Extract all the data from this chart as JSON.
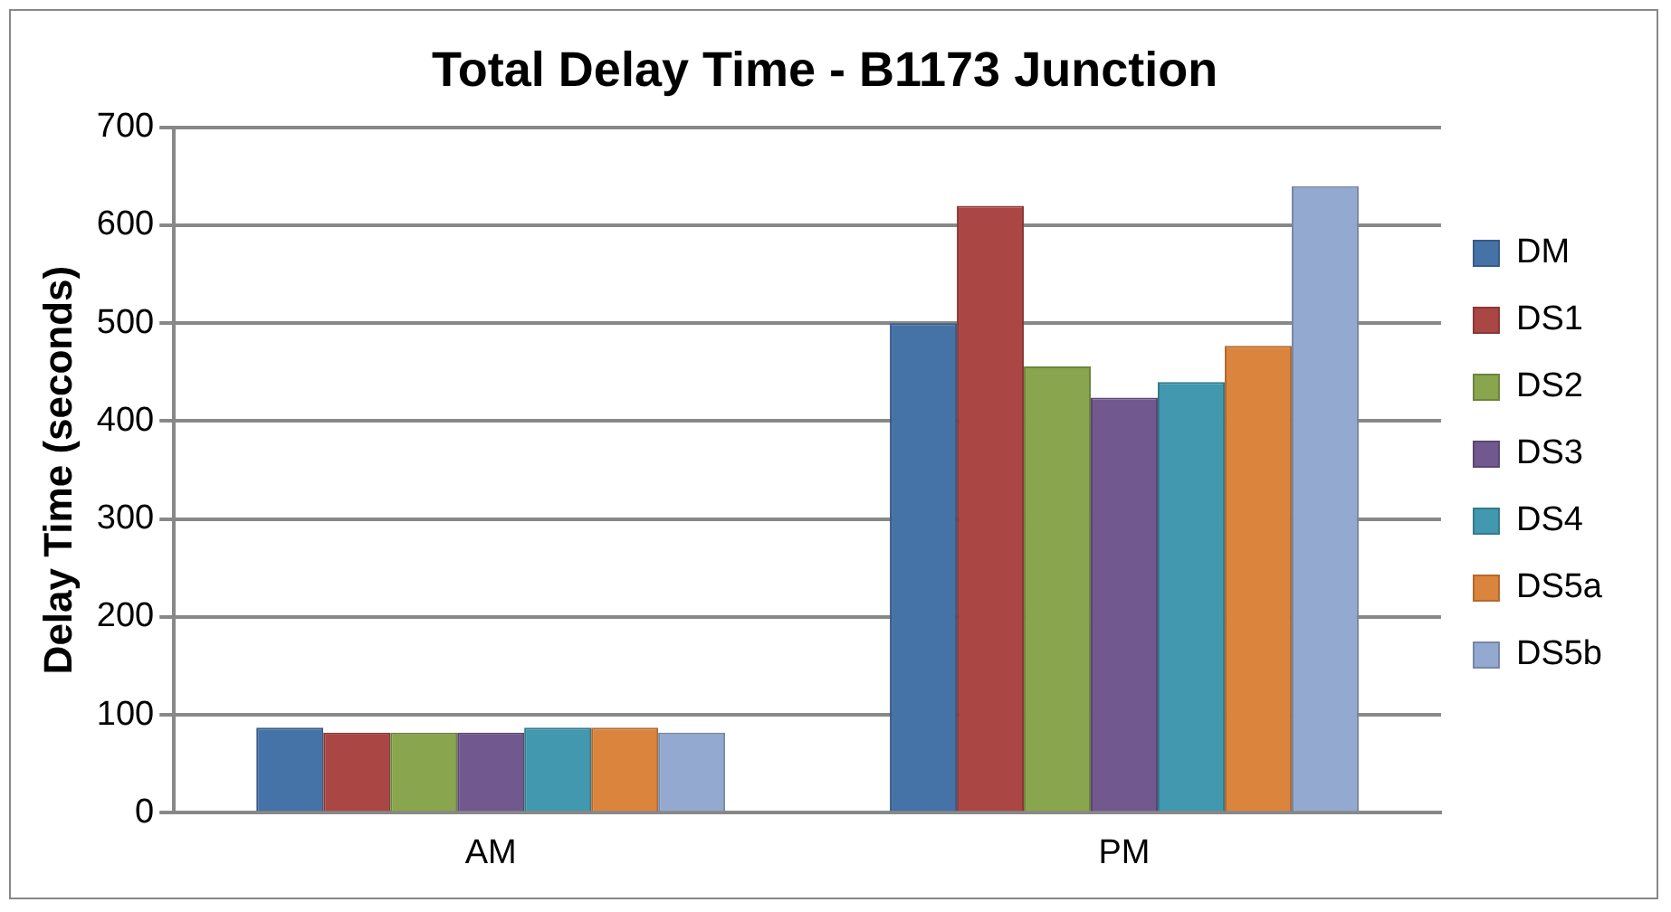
{
  "chart_data": {
    "type": "bar",
    "title": "Total Delay Time - B1173 Junction",
    "ylabel": "Delay Time (seconds)",
    "categories": [
      "AM",
      "PM"
    ],
    "series": [
      {
        "name": "DM",
        "color": "#4572a7",
        "values": [
          87,
          500
        ]
      },
      {
        "name": "DS1",
        "color": "#aa4643",
        "values": [
          82,
          620
        ]
      },
      {
        "name": "DS2",
        "color": "#89a54e",
        "values": [
          82,
          456
        ]
      },
      {
        "name": "DS3",
        "color": "#71588f",
        "values": [
          82,
          424
        ]
      },
      {
        "name": "DS4",
        "color": "#4198af",
        "values": [
          87,
          440
        ]
      },
      {
        "name": "DS5a",
        "color": "#db843d",
        "values": [
          87,
          477
        ]
      },
      {
        "name": "DS5b",
        "color": "#93a9cf",
        "values": [
          82,
          640
        ]
      }
    ],
    "ylim": [
      0,
      700
    ],
    "yticks": [
      0,
      100,
      200,
      300,
      400,
      500,
      600,
      700
    ],
    "grid": "y",
    "legend": "right"
  }
}
